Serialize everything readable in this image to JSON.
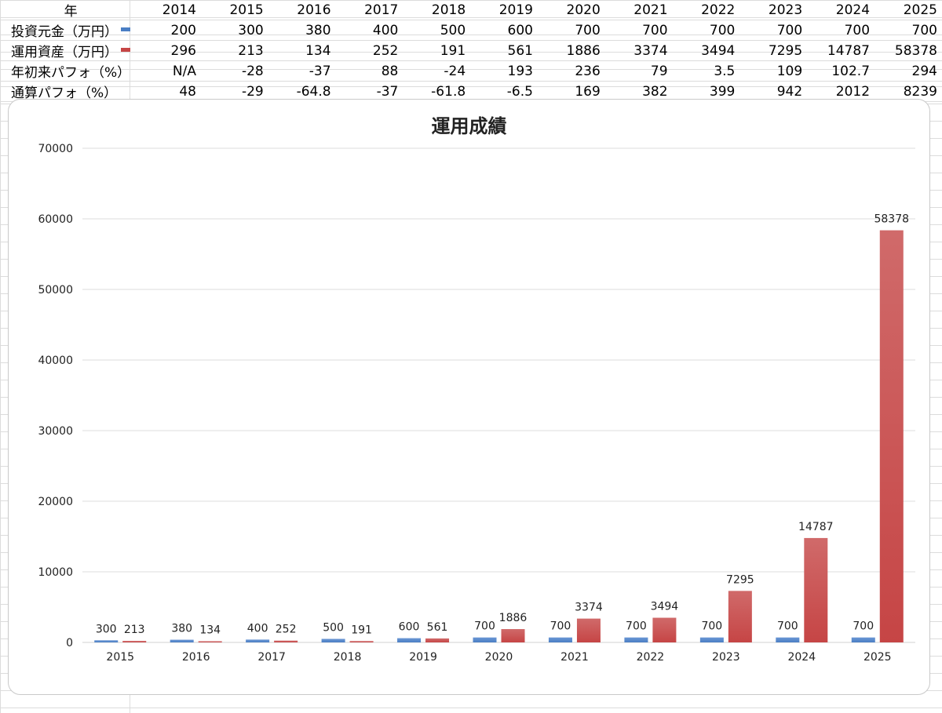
{
  "sheet": {
    "header_label": "年",
    "years": [
      "2014",
      "2015",
      "2016",
      "2017",
      "2018",
      "2019",
      "2020",
      "2021",
      "2022",
      "2023",
      "2024",
      "2025"
    ],
    "rows": [
      {
        "label": "投資元金（万円）",
        "swatch": "#4a7ec4",
        "values": [
          "200",
          "300",
          "380",
          "400",
          "500",
          "600",
          "700",
          "700",
          "700",
          "700",
          "700",
          "700"
        ]
      },
      {
        "label": "運用資産（万円）",
        "swatch": "#c64545",
        "values": [
          "296",
          "213",
          "134",
          "252",
          "191",
          "561",
          "1886",
          "3374",
          "3494",
          "7295",
          "14787",
          "58378"
        ]
      },
      {
        "label": "年初来パフォ（%）",
        "swatch": "",
        "values": [
          "N/A",
          "-28",
          "-37",
          "88",
          "-24",
          "193",
          "236",
          "79",
          "3.5",
          "109",
          "102.7",
          "294"
        ]
      },
      {
        "label": "通算パフォ（%）",
        "swatch": "",
        "values": [
          "48",
          "-29",
          "-64.8",
          "-37",
          "-61.8",
          "-6.5",
          "169",
          "382",
          "399",
          "942",
          "2012",
          "8239"
        ]
      }
    ]
  },
  "chart_data": {
    "type": "bar",
    "title": "運用成績",
    "categories": [
      "2015",
      "2016",
      "2017",
      "2018",
      "2019",
      "2020",
      "2021",
      "2022",
      "2023",
      "2024",
      "2025"
    ],
    "series": [
      {
        "name": "投資元金（万円）",
        "color": "#4a7ec4",
        "values": [
          300,
          380,
          400,
          500,
          600,
          700,
          700,
          700,
          700,
          700,
          700
        ]
      },
      {
        "name": "運用資産（万円）",
        "color": "#c64545",
        "values": [
          213,
          134,
          252,
          191,
          561,
          1886,
          3374,
          3494,
          7295,
          14787,
          58378
        ]
      }
    ],
    "ylim": [
      0,
      70000
    ],
    "yticks": [
      "0",
      "10000",
      "20000",
      "30000",
      "40000",
      "50000",
      "60000",
      "70000"
    ],
    "grid": true,
    "data_labels": true
  }
}
